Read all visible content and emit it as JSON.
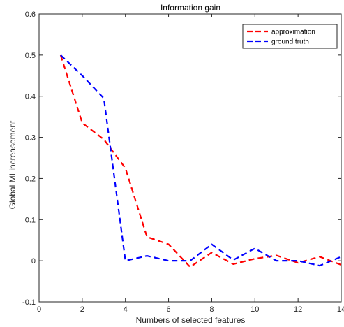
{
  "chart_data": {
    "type": "line",
    "title": "Information gain",
    "xlabel": "Numbers of selected features",
    "ylabel": "Global MI increasement",
    "xlim": [
      0,
      14
    ],
    "ylim": [
      -0.1,
      0.6
    ],
    "xticks": [
      0,
      2,
      4,
      6,
      8,
      10,
      12,
      14
    ],
    "yticks": [
      -0.1,
      0,
      0.1,
      0.2,
      0.3,
      0.4,
      0.5,
      0.6
    ],
    "xtick_labels": [
      "0",
      "2",
      "4",
      "6",
      "8",
      "10",
      "12",
      "14"
    ],
    "ytick_labels": [
      "-0.1",
      "0",
      "0.1",
      "0.2",
      "0.3",
      "0.4",
      "0.5",
      "0.6"
    ],
    "grid": false,
    "legend_position": "top-right",
    "series": [
      {
        "name": "approximation",
        "color": "#ff0000",
        "line_style": "dashed",
        "x": [
          1,
          2,
          3,
          4,
          5,
          6,
          7,
          8,
          9,
          10,
          11,
          12,
          13,
          14
        ],
        "y": [
          0.5,
          0.335,
          0.295,
          0.225,
          0.058,
          0.04,
          -0.015,
          0.02,
          -0.008,
          0.005,
          0.013,
          -0.005,
          0.01,
          -0.01
        ]
      },
      {
        "name": "ground truth",
        "color": "#0000ff",
        "line_style": "dashed",
        "x": [
          1,
          2,
          3,
          4,
          5,
          6,
          7,
          8,
          9,
          10,
          11,
          12,
          13,
          14
        ],
        "y": [
          0.5,
          0.45,
          0.395,
          0.0,
          0.012,
          0.0,
          0.0,
          0.04,
          0.002,
          0.03,
          0.0,
          0.0,
          -0.012,
          0.01
        ]
      }
    ]
  }
}
